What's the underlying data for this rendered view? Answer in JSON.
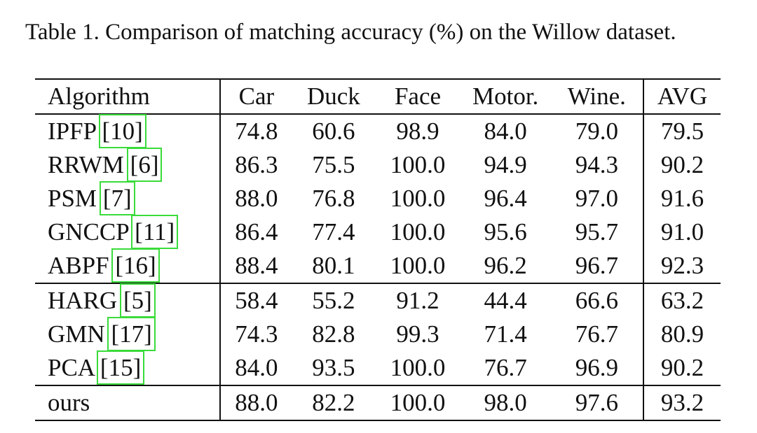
{
  "caption": "Table 1. Comparison of matching accuracy (%) on the Willow dataset.",
  "table": {
    "headers": [
      "Algorithm",
      "Car",
      "Duck",
      "Face",
      "Motor.",
      "Wine.",
      "AVG"
    ],
    "groups": [
      [
        {
          "name": "IPFP",
          "cite": "10",
          "values": [
            "74.8",
            "60.6",
            "98.9",
            "84.0",
            "79.0",
            "79.5"
          ]
        },
        {
          "name": "RRWM",
          "cite": "6",
          "values": [
            "86.3",
            "75.5",
            "100.0",
            "94.9",
            "94.3",
            "90.2"
          ]
        },
        {
          "name": "PSM",
          "cite": "7",
          "values": [
            "88.0",
            "76.8",
            "100.0",
            "96.4",
            "97.0",
            "91.6"
          ]
        },
        {
          "name": "GNCCP",
          "cite": "11",
          "values": [
            "86.4",
            "77.4",
            "100.0",
            "95.6",
            "95.7",
            "91.0"
          ]
        },
        {
          "name": "ABPF",
          "cite": "16",
          "values": [
            "88.4",
            "80.1",
            "100.0",
            "96.2",
            "96.7",
            "92.3"
          ]
        }
      ],
      [
        {
          "name": "HARG",
          "cite": "5",
          "values": [
            "58.4",
            "55.2",
            "91.2",
            "44.4",
            "66.6",
            "63.2"
          ]
        },
        {
          "name": "GMN",
          "cite": "17",
          "values": [
            "74.3",
            "82.8",
            "99.3",
            "71.4",
            "76.7",
            "80.9"
          ]
        },
        {
          "name": "PCA",
          "cite": "15",
          "values": [
            "84.0",
            "93.5",
            "100.0",
            "76.7",
            "96.9",
            "90.2"
          ]
        }
      ],
      [
        {
          "name": "ours",
          "cite": "",
          "values": [
            "88.0",
            "82.2",
            "100.0",
            "98.0",
            "97.6",
            "93.2"
          ]
        }
      ]
    ]
  },
  "colors": {
    "citation_box": "#3adb3a",
    "rule": "#111111"
  }
}
